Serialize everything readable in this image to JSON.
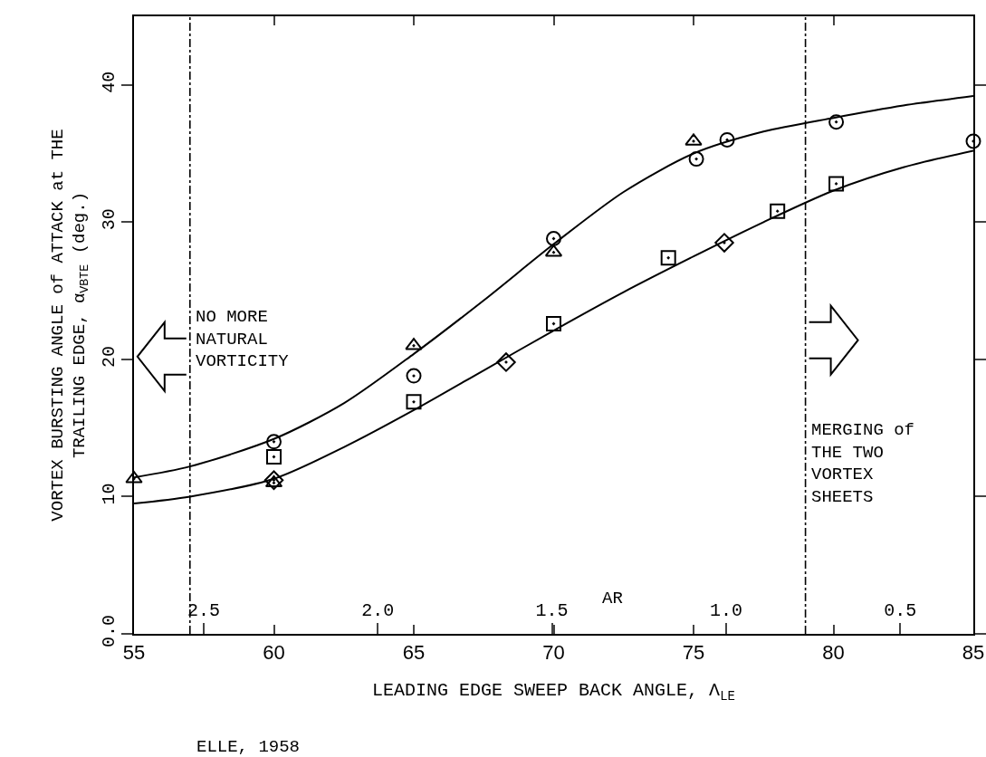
{
  "chart_data": {
    "type": "scatter",
    "xlabel": "LEADING EDGE SWEEP BACK ANGLE, Λ$_{LE}$",
    "ylabel": "VORTEX BURSTING ANGLE of ATTACK at THE\nTRAILING EDGE, α$_{VBTE}$ (deg.)",
    "x2label": "AR",
    "xlim": [
      55,
      85
    ],
    "xticks": [
      55,
      60,
      65,
      70,
      75,
      80,
      85
    ],
    "x2lim": [
      2.7,
      0.29
    ],
    "x2ticks": [
      {
        "value": 2.5,
        "label": "2.5"
      },
      {
        "value": 2.0,
        "label": "2.0"
      },
      {
        "value": 1.5,
        "label": "1.5"
      },
      {
        "value": 1.0,
        "label": "1.0"
      },
      {
        "value": 0.5,
        "label": "0.5"
      }
    ],
    "ylim": [
      0,
      45
    ],
    "yticks": [
      {
        "value": 0,
        "label": "0.0"
      },
      10,
      20,
      30,
      40
    ],
    "grid": false,
    "series": [
      {
        "color": "#000000",
        "marker": "circle",
        "x": [
          60,
          65,
          70,
          75.1,
          76.2,
          80.1,
          85
        ],
        "values": [
          14.0,
          18.8,
          28.8,
          34.6,
          36.0,
          37.3,
          35.9
        ]
      },
      {
        "color": "#000000",
        "marker": "triangle",
        "x": [
          55,
          60,
          65,
          70,
          75
        ],
        "values": [
          11.3,
          11.0,
          21.0,
          27.8,
          35.9
        ]
      },
      {
        "color": "#000000",
        "marker": "square",
        "x": [
          60,
          65,
          70,
          74.1,
          78.0,
          80.1
        ],
        "values": [
          12.9,
          16.9,
          22.6,
          27.4,
          30.8,
          32.8
        ]
      },
      {
        "color": "#000000",
        "marker": "diamond",
        "x": [
          60,
          68.3,
          76.1
        ],
        "values": [
          11.2,
          19.8,
          28.5
        ]
      },
      {
        "color": "#000000",
        "type": "line",
        "marker": "none",
        "x": [
          55,
          57,
          60,
          62.5,
          65,
          67.5,
          70,
          72.5,
          75,
          77.5,
          80,
          82.5,
          85
        ],
        "values": [
          11.4,
          12.2,
          14.2,
          16.8,
          20.4,
          24.3,
          28.4,
          32.2,
          35.0,
          36.6,
          37.6,
          38.5,
          39.2
        ]
      },
      {
        "color": "#000000",
        "type": "line",
        "marker": "none",
        "x": [
          55,
          57,
          60,
          62.5,
          65,
          67.5,
          70,
          72.5,
          75,
          77.5,
          80,
          82.5,
          85
        ],
        "values": [
          9.5,
          10.0,
          11.3,
          13.6,
          16.3,
          19.2,
          22.1,
          24.9,
          27.5,
          30.0,
          32.3,
          34.0,
          35.2
        ]
      }
    ],
    "ref_lines": [
      {
        "axis": "x",
        "value": 57,
        "label": "NO MORE\nNATURAL\nVORTICITY",
        "color": "#000000",
        "line_style": "dashdot"
      },
      {
        "axis": "x",
        "value": 79,
        "label": "MERGING of\nTHE TWO\nVORTEX\nSHEETS",
        "color": "#000000",
        "line_style": "dashdot"
      }
    ],
    "annotations": [
      "ELLE, 1958"
    ]
  }
}
